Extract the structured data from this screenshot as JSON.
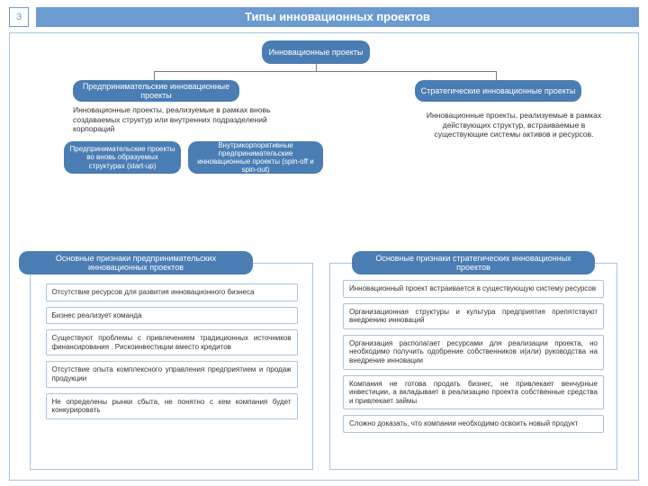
{
  "slide_number": "3",
  "title": "Типы инновационных проектов",
  "root_node": "Инновационные проекты",
  "left_branch": {
    "title": "Предпринимательские инновационные проекты",
    "description": "Инновационные проекты, реализуемые в рамках вновь создаваемых структур или внутренних подразделений корпораций",
    "sub1": "Предпринимательские проекты во вновь образуемых структурах (start-up)",
    "sub2": "Внутрикорпоративные предпринимательские инновационные проекты (spin-off и spin-out)"
  },
  "right_branch": {
    "title": "Стратегические инновационные проекты",
    "description": "Инновационные проекты, реализуемые в рамках действующих структур, встраиваемые в существующие системы активов и ресурсов."
  },
  "left_column": {
    "header": "Основные признаки предпринимательских инновационных проектов",
    "items": [
      "Отсутствие ресурсов для развития инновационного бизнеса",
      "Бизнес реализует команда",
      "Существуют проблемы с привлечением традиционных источников финансирования . Рискоинвестиции вместо кредитов",
      "Отсутствие опыта комплексного управления предприятием и продаж продукции",
      "Не определены рынки сбыта, не понятно с кем компания будет конкурировать"
    ]
  },
  "right_column": {
    "header": "Основные признаки стратегических инновационных проектов",
    "items": [
      "Инновационный проект встраивается в существующую систему ресурсов",
      "Организационная структуры и культура предприятия препятствуют внедрению инноваций",
      "Организация располагает ресурсами для реализации проекта, но необходимо получить одобрение собственников и(или) руководства на внедрение инновации",
      "Компания не готова продать бизнес, не привлекает венчурные инвестиции, а вкладывает в реализацию проекта собственные средства и привлекает займы",
      "Сложно доказать, что компании необходимо освоить новый продукт"
    ]
  },
  "colors": {
    "header_bg": "#6b9bd1",
    "pill_bg": "#4a7db3",
    "border": "#a8c4e0",
    "text": "#333333"
  }
}
